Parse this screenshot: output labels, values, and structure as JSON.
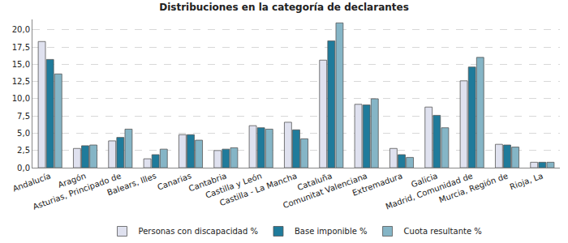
{
  "chart_data": {
    "type": "bar",
    "title": "Distribuciones en la categoría de declarantes",
    "categories": [
      "Andalucía",
      "Aragón",
      "Asturias, Principado de",
      "Balears, Illes",
      "Canarias",
      "Cantabria",
      "Castilla y León",
      "Castilla - La Mancha",
      "Cataluña",
      "Comunitat Valenciana",
      "Extremadura",
      "Galicia",
      "Madrid, Comunidad de",
      "Murcia, Región de",
      "Rioja, La"
    ],
    "series": [
      {
        "name": "Personas con discapacidad %",
        "color": "#dfe1ef",
        "values": [
          18.3,
          2.8,
          3.9,
          1.3,
          4.8,
          2.5,
          6.1,
          6.6,
          15.6,
          9.2,
          2.8,
          8.8,
          12.6,
          3.4,
          0.8
        ]
      },
      {
        "name": "Base imponible %",
        "color": "#1f7b9b",
        "values": [
          15.7,
          3.2,
          4.4,
          1.9,
          4.8,
          2.7,
          5.8,
          5.5,
          18.4,
          9.1,
          1.9,
          7.6,
          14.6,
          3.3,
          0.8
        ]
      },
      {
        "name": "Cuota resultante %",
        "color": "#85b5c6",
        "values": [
          13.6,
          3.3,
          5.6,
          2.7,
          4.0,
          2.9,
          5.6,
          4.2,
          21.0,
          10.0,
          1.5,
          5.8,
          16.0,
          3.0,
          0.8
        ]
      }
    ],
    "ylim": [
      0,
      21.5
    ],
    "yticks": [
      {
        "value": 0,
        "label": "0,0"
      },
      {
        "value": 2.5,
        "label": "2,5"
      },
      {
        "value": 5,
        "label": "5,0"
      },
      {
        "value": 7.5,
        "label": "7,5"
      },
      {
        "value": 10,
        "label": "10,0"
      },
      {
        "value": 12.5,
        "label": "12,5"
      },
      {
        "value": 15,
        "label": "15,0"
      },
      {
        "value": 17.5,
        "label": "17,5"
      },
      {
        "value": 20,
        "label": "20,0"
      }
    ],
    "grid": true,
    "legend": "bottom"
  }
}
